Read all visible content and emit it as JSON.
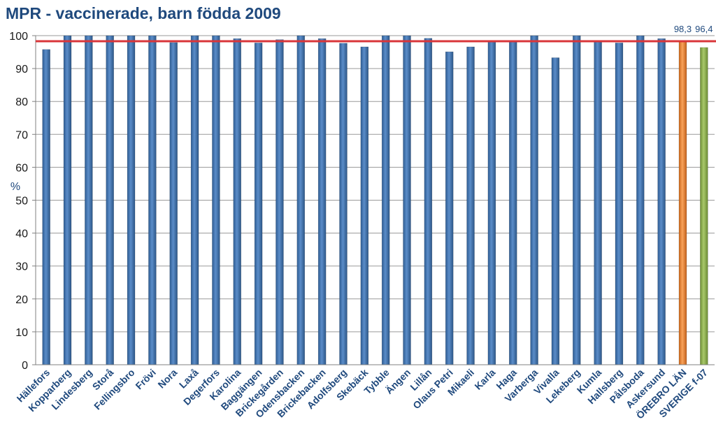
{
  "chart_data": {
    "type": "bar",
    "title": "MPR - vaccinerade, barn födda 2009",
    "xlabel": "",
    "ylabel": "%",
    "ylim": [
      0,
      100
    ],
    "yticks": [
      0,
      10,
      20,
      30,
      40,
      50,
      60,
      70,
      80,
      90,
      100
    ],
    "grid": true,
    "categories": [
      "Hällefors",
      "Kopparberg",
      "Lindesberg",
      "Storå",
      "Fellingsbro",
      "Frövi",
      "Nora",
      "Laxå",
      "Degerfors",
      "Karolina",
      "Baggängen",
      "Brickegården",
      "Odensbacken",
      "Brickebacken",
      "Adolfsberg",
      "Skebäck",
      "Tybble",
      "Ängen",
      "Lillån",
      "Olaus Petri",
      "Mikaeli",
      "Karla",
      "Haga",
      "Varberga",
      "Vivalla",
      "Lekeberg",
      "Kumla",
      "Hallsberg",
      "Pålsboda",
      "Askersund",
      "ÖREBRO LÄN",
      "SVERIGE f-07"
    ],
    "values": [
      95.8,
      100,
      100,
      100,
      100,
      100,
      97.9,
      100,
      100,
      99.1,
      97.8,
      98.8,
      100,
      99.1,
      97.7,
      96.6,
      100,
      100,
      99.2,
      95.1,
      96.6,
      98.4,
      98.5,
      100,
      93.3,
      100,
      98.4,
      97.8,
      100,
      99.1,
      98.3,
      96.4
    ],
    "bar_colors": [
      "#4F81BD",
      "#4F81BD",
      "#4F81BD",
      "#4F81BD",
      "#4F81BD",
      "#4F81BD",
      "#4F81BD",
      "#4F81BD",
      "#4F81BD",
      "#4F81BD",
      "#4F81BD",
      "#4F81BD",
      "#4F81BD",
      "#4F81BD",
      "#4F81BD",
      "#4F81BD",
      "#4F81BD",
      "#4F81BD",
      "#4F81BD",
      "#4F81BD",
      "#4F81BD",
      "#4F81BD",
      "#4F81BD",
      "#4F81BD",
      "#4F81BD",
      "#4F81BD",
      "#4F81BD",
      "#4F81BD",
      "#4F81BD",
      "#4F81BD",
      "#F79646",
      "#9BBB59"
    ],
    "data_labels": [
      {
        "index": 30,
        "text": "98,3"
      },
      {
        "index": 31,
        "text": "96,4"
      }
    ],
    "reference_line": {
      "value": 98.3,
      "color": "#D9363A"
    }
  }
}
